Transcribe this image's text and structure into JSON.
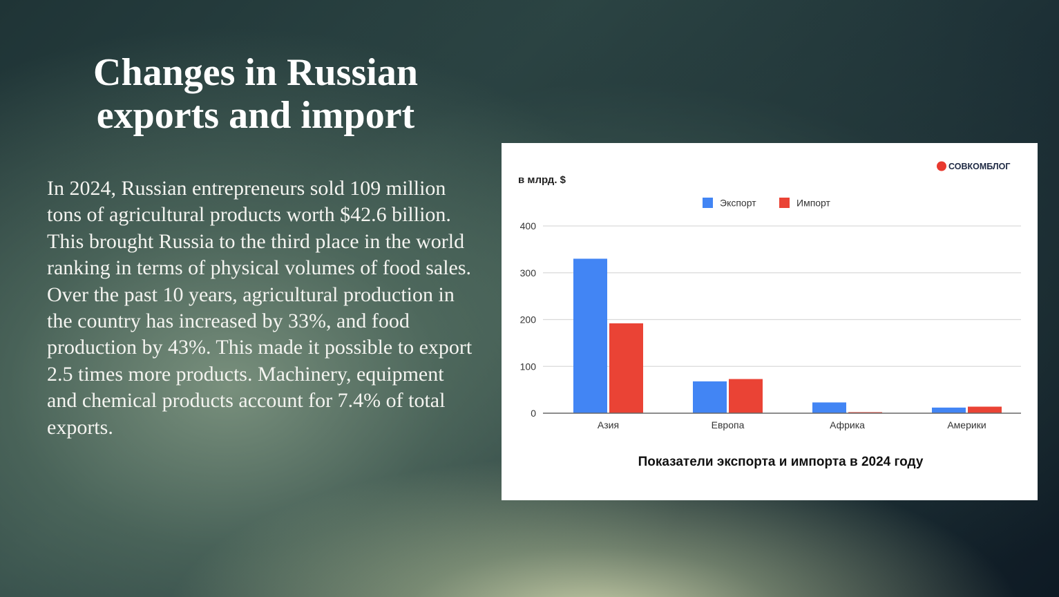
{
  "slide": {
    "title": "Changes in Russian exports and import",
    "body": "In 2024, Russian entrepreneurs sold 109 million tons of agricultural products worth $42.6 billion. This brought Russia to the third place in the world ranking in terms of physical volumes of food sales. Over the past 10 years, agricultural production in the country has increased by 33%, and food production by 43%. This made it possible to export 2.5 times more products. Machinery, equipment and chemical products account for 7.4% of total exports."
  },
  "logo": {
    "text": "СОВКОМБЛОГ",
    "color": "#e8392f"
  },
  "chart_data": {
    "type": "bar",
    "title": "Показатели экспорта и импорта в 2024 году",
    "ylabel": "в млрд. $",
    "categories": [
      "Азия",
      "Европа",
      "Африка",
      "Америки"
    ],
    "series": [
      {
        "name": "Экспорт",
        "color": "#4285f4",
        "values": [
          330,
          68,
          23,
          12
        ]
      },
      {
        "name": "Импорт",
        "color": "#ea4335",
        "values": [
          192,
          73,
          2,
          14
        ]
      }
    ],
    "ylim": [
      0,
      400
    ],
    "yticks": [
      0,
      100,
      200,
      300,
      400
    ],
    "grid": true,
    "legend": "top-center"
  }
}
